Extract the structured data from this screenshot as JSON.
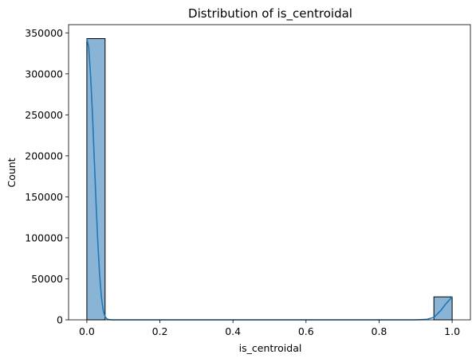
{
  "chart_data": {
    "type": "bar",
    "title": "Distribution of is_centroidal",
    "xlabel": "is_centroidal",
    "ylabel": "Count",
    "xlim": [
      -0.05,
      1.05
    ],
    "ylim": [
      0,
      360000
    ],
    "x_ticks": [
      0.0,
      0.2,
      0.4,
      0.6,
      0.8,
      1.0
    ],
    "x_tick_labels": [
      "0.0",
      "0.2",
      "0.4",
      "0.6",
      "0.8",
      "1.0"
    ],
    "y_ticks": [
      0,
      50000,
      100000,
      150000,
      200000,
      250000,
      300000,
      350000
    ],
    "y_tick_labels": [
      "0",
      "50000",
      "100000",
      "150000",
      "200000",
      "250000",
      "300000",
      "350000"
    ],
    "bins": [
      {
        "start": 0.0,
        "end": 0.05,
        "count": 343000
      },
      {
        "start": 0.95,
        "end": 1.0,
        "count": 28000
      }
    ],
    "kde": {
      "x": [
        0.0,
        0.005,
        0.01,
        0.015,
        0.02,
        0.025,
        0.03,
        0.035,
        0.04,
        0.045,
        0.05,
        0.055,
        0.06,
        0.07,
        0.1,
        0.3,
        0.5,
        0.7,
        0.9,
        0.93,
        0.95,
        0.97,
        0.98,
        0.99,
        1.0
      ],
      "y": [
        343000,
        333000,
        300000,
        255000,
        200000,
        145000,
        95000,
        55000,
        27000,
        11000,
        4000,
        1200,
        300,
        0,
        0,
        0,
        0,
        0,
        0,
        500,
        3000,
        12000,
        18000,
        23000,
        28000
      ]
    },
    "colors": {
      "bar_fill": "#89b4d6",
      "bar_edge": "#000000",
      "kde_line": "#1f77b4",
      "axes": "#000000"
    },
    "grid": false,
    "legend": "none"
  }
}
